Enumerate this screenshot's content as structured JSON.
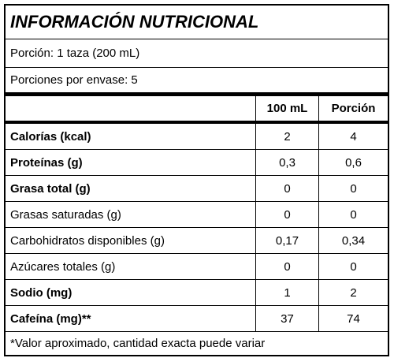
{
  "title": "INFORMACIÓN NUTRICIONAL",
  "serving": "Porción: 1 taza (200 mL)",
  "servings_per_container": "Porciones por envase: 5",
  "table": {
    "columns": [
      "100 mL",
      "Porción"
    ],
    "rows": [
      {
        "label": "Calorías (kcal)",
        "bold": true,
        "values": [
          "2",
          "4"
        ]
      },
      {
        "label": "Proteínas (g)",
        "bold": true,
        "values": [
          "0,3",
          "0,6"
        ]
      },
      {
        "label": "Grasa total (g)",
        "bold": true,
        "values": [
          "0",
          "0"
        ]
      },
      {
        "label": "Grasas saturadas (g)",
        "bold": false,
        "values": [
          "0",
          "0"
        ]
      },
      {
        "label": "Carbohidratos disponibles (g)",
        "bold": false,
        "values": [
          "0,17",
          "0,34"
        ]
      },
      {
        "label": "Azúcares totales (g)",
        "bold": false,
        "values": [
          "0",
          "0"
        ]
      },
      {
        "label": "Sodio (mg)",
        "bold": true,
        "values": [
          "1",
          "2"
        ]
      },
      {
        "label": "Cafeína (mg)**",
        "bold": true,
        "values": [
          "37",
          "74"
        ]
      }
    ]
  },
  "footnote": "*Valor aproximado, cantidad exacta puede variar"
}
